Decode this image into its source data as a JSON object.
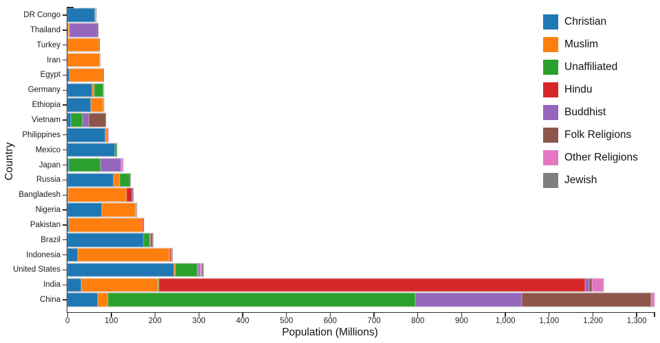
{
  "chart_data": {
    "type": "bar",
    "orientation": "horizontal",
    "stacked": true,
    "title": "",
    "xlabel": "Population (Millions)",
    "ylabel": "Country",
    "xlim": [
      0,
      1345
    ],
    "grid": false,
    "legend_position": "top-right",
    "x_tick_values": [
      0,
      100,
      200,
      300,
      400,
      500,
      600,
      700,
      800,
      900,
      1000,
      1100,
      1200,
      1300
    ],
    "x_tick_labels": [
      "0",
      "100",
      "200",
      "300",
      "400",
      "500",
      "600",
      "700",
      "800",
      "900",
      "1,000",
      "1,100",
      "1,200",
      "1,300"
    ],
    "categories": [
      "DR Congo",
      "Thailand",
      "Turkey",
      "Iran",
      "Egypt",
      "Germany",
      "Ethiopia",
      "Vietnam",
      "Philippines",
      "Mexico",
      "Japan",
      "Russia",
      "Bangladesh",
      "Nigeria",
      "Pakistan",
      "Brazil",
      "Indonesia",
      "United States",
      "India",
      "China"
    ],
    "series": [
      {
        "name": "Christian",
        "color": "#1f77b4",
        "values": [
          63.2,
          0.6,
          0.3,
          0.3,
          4.3,
          56.5,
          52.6,
          7.2,
          85.5,
          107.8,
          2.9,
          104.9,
          0.7,
          78.1,
          2.8,
          173.3,
          23.7,
          243.1,
          31.1,
          68.4
        ]
      },
      {
        "name": "Muslim",
        "color": "#ff7f0e",
        "values": [
          1.0,
          3.9,
          71.3,
          73.6,
          77.0,
          4.8,
          28.7,
          0.2,
          4.8,
          0.0,
          0.2,
          14.3,
          133.5,
          77.3,
          167.4,
          0.0,
          209.1,
          2.8,
          176.2,
          24.7
        ]
      },
      {
        "name": "Unaffiliated",
        "color": "#2ca02c",
        "values": [
          0.5,
          0.2,
          0.9,
          0.3,
          0.2,
          20.4,
          0.1,
          26.2,
          0.1,
          5.3,
          72.7,
          23.2,
          0.1,
          0.7,
          0.0,
          15.4,
          0.2,
          50.8,
          0.9,
          700.7
        ]
      },
      {
        "name": "Hindu",
        "color": "#d62728",
        "values": [
          0.0,
          0.1,
          0.0,
          0.0,
          0.0,
          0.0,
          0.0,
          0.0,
          0.0,
          0.0,
          0.0,
          0.0,
          13.5,
          0.0,
          3.3,
          0.0,
          4.1,
          1.8,
          973.8,
          0.0
        ]
      },
      {
        "name": "Buddhist",
        "color": "#9467bd",
        "values": [
          0.0,
          64.4,
          0.0,
          0.0,
          0.0,
          0.3,
          0.0,
          14.4,
          0.0,
          0.0,
          45.8,
          0.1,
          0.7,
          0.0,
          0.0,
          0.5,
          1.7,
          3.6,
          9.3,
          244.1
        ]
      },
      {
        "name": "Folk Religions",
        "color": "#8c564b",
        "values": [
          1.2,
          0.4,
          0.0,
          0.0,
          0.0,
          0.0,
          1.5,
          39.8,
          1.4,
          0.1,
          0.5,
          0.3,
          0.6,
          2.2,
          0.0,
          5.5,
          0.8,
          1.4,
          5.8,
          294.3
        ]
      },
      {
        "name": "Other Religions",
        "color": "#e377c2",
        "values": [
          0.1,
          0.0,
          0.1,
          0.1,
          0.0,
          0.1,
          0.0,
          0.1,
          1.1,
          0.1,
          4.9,
          0.0,
          0.0,
          0.1,
          0.0,
          0.3,
          0.1,
          1.9,
          27.6,
          9.1
        ]
      },
      {
        "name": "Jewish",
        "color": "#7f7f7f",
        "values": [
          0.0,
          0.0,
          0.0,
          0.0,
          0.0,
          0.3,
          0.0,
          0.0,
          0.0,
          0.0,
          0.0,
          0.2,
          0.0,
          0.0,
          0.0,
          0.5,
          0.0,
          5.7,
          0.0,
          0.0
        ]
      }
    ]
  }
}
